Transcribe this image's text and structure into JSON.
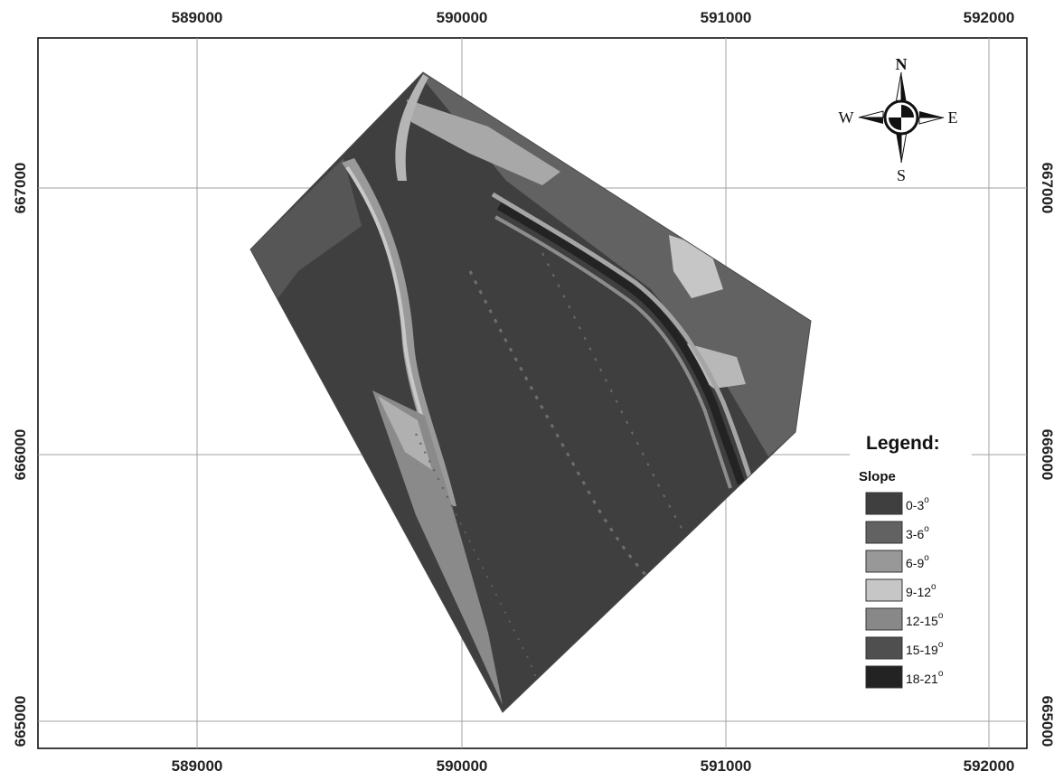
{
  "map": {
    "x_ticks": [
      "589000",
      "590000",
      "591000",
      "592000"
    ],
    "y_ticks": [
      "667000",
      "666000",
      "665000"
    ],
    "colors": {
      "background": "#ffffff",
      "frame": "#000000",
      "grid": "#a0a0a0"
    }
  },
  "compass": {
    "north": "N",
    "south": "S",
    "east": "E",
    "west": "W"
  },
  "legend": {
    "title": "Legend:",
    "subtitle": "Slope",
    "degree_symbol": "o",
    "classes": [
      {
        "label": "0-3",
        "color": "#3f3f3f"
      },
      {
        "label": "3-6",
        "color": "#626262"
      },
      {
        "label": "6-9",
        "color": "#989898"
      },
      {
        "label": "9-12",
        "color": "#c6c6c6"
      },
      {
        "label": "12-15",
        "color": "#888888"
      },
      {
        "label": "15-19",
        "color": "#4f4f4f"
      },
      {
        "label": "18-21",
        "color": "#232323"
      }
    ]
  }
}
